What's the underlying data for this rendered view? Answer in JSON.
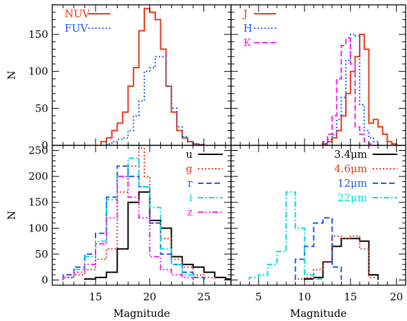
{
  "chart_data": [
    {
      "panel": "top-left",
      "type": "histogram",
      "xlim": [
        11,
        27.5
      ],
      "ylim": [
        0,
        190
      ],
      "xticks": [
        15,
        20,
        25
      ],
      "yticks": [
        0,
        50,
        100,
        150
      ],
      "ylabel": "N",
      "xlabel": "",
      "show_xticklabels": false,
      "legend_placement": "top-left",
      "series": [
        {
          "name": "NUV",
          "color": "#ee3311",
          "dash": "solid",
          "edges": [
            15.5,
            16,
            16.5,
            17,
            17.5,
            18,
            18.5,
            19,
            19.5,
            20,
            20.5,
            21,
            21.5,
            22,
            22.5,
            23,
            23.5,
            24,
            24.5,
            25
          ],
          "values": [
            5,
            10,
            20,
            30,
            45,
            80,
            105,
            155,
            185,
            180,
            170,
            130,
            80,
            45,
            20,
            10,
            5,
            2,
            1
          ]
        },
        {
          "name": "FUV",
          "color": "#2255ee",
          "dash": "dot",
          "edges": [
            16,
            16.5,
            17,
            17.5,
            18,
            18.5,
            19,
            19.5,
            20,
            20.5,
            21,
            21.5,
            22,
            22.5,
            23,
            23.5,
            24,
            24.5,
            25
          ],
          "values": [
            2,
            5,
            8,
            10,
            20,
            40,
            60,
            100,
            105,
            120,
            120,
            80,
            50,
            25,
            12,
            5,
            2,
            1
          ]
        }
      ]
    },
    {
      "panel": "top-right",
      "type": "histogram",
      "xlim": [
        2,
        21
      ],
      "ylim": [
        0,
        190
      ],
      "xticks": [
        5,
        10,
        15,
        20
      ],
      "yticks": [
        0,
        50,
        100,
        150
      ],
      "ylabel": "",
      "xlabel": "",
      "show_xticklabels": false,
      "show_yticklabels": false,
      "legend_placement": "top-left",
      "series": [
        {
          "name": "J",
          "color": "#ee3311",
          "dash": "solid",
          "edges": [
            12,
            12.5,
            13,
            13.5,
            14,
            14.5,
            15,
            15.5,
            16,
            16.5,
            17,
            17.5,
            18,
            18.5,
            19,
            19.5,
            20
          ],
          "values": [
            2,
            5,
            10,
            20,
            40,
            70,
            100,
            120,
            150,
            130,
            30,
            35,
            25,
            15,
            5,
            2
          ]
        },
        {
          "name": "H",
          "color": "#2255ee",
          "dash": "dot",
          "edges": [
            12,
            12.5,
            13,
            13.5,
            14,
            14.5,
            15,
            15.5,
            16,
            16.5,
            17,
            17.5,
            18
          ],
          "values": [
            2,
            8,
            15,
            35,
            65,
            115,
            150,
            148,
            55,
            20,
            10,
            5
          ]
        },
        {
          "name": "K",
          "color": "#ee22ee",
          "dash": "dash",
          "edges": [
            12,
            12.5,
            13,
            13.5,
            14,
            14.5,
            15,
            15.5,
            16,
            16.5,
            17,
            17.5
          ],
          "values": [
            5,
            15,
            40,
            90,
            135,
            145,
            110,
            25,
            15,
            5,
            2
          ]
        }
      ]
    },
    {
      "panel": "bottom-left",
      "type": "histogram",
      "xlim": [
        11,
        27.5
      ],
      "ylim": [
        -10,
        260
      ],
      "xticks": [
        15,
        20,
        25
      ],
      "yticks": [
        0,
        50,
        100,
        150,
        200,
        250
      ],
      "ylabel": "N",
      "xlabel": "Magnitude",
      "legend_placement": "top-right",
      "series": [
        {
          "name": "u",
          "color": "#000000",
          "dash": "solid",
          "edges": [
            14,
            15,
            16,
            17,
            18,
            19,
            20,
            21,
            22,
            23,
            24,
            25,
            26,
            27,
            27.5
          ],
          "values": [
            2,
            5,
            15,
            60,
            150,
            170,
            115,
            100,
            45,
            30,
            25,
            15,
            5,
            2
          ]
        },
        {
          "name": "g",
          "color": "#ee3311",
          "dash": "dot",
          "edges": [
            12,
            13,
            14,
            15,
            16,
            17,
            18,
            19,
            19.5,
            20,
            21,
            22,
            23,
            24,
            25,
            26
          ],
          "values": [
            5,
            10,
            20,
            40,
            60,
            170,
            220,
            255,
            200,
            110,
            80,
            40,
            25,
            10,
            5
          ]
        },
        {
          "name": "r",
          "color": "#2255ee",
          "dash": "dash",
          "edges": [
            12,
            13,
            14,
            15,
            16,
            17,
            18,
            19,
            20,
            21,
            22,
            23,
            24,
            25
          ],
          "values": [
            10,
            25,
            50,
            90,
            160,
            220,
            200,
            180,
            110,
            50,
            30,
            15,
            5
          ]
        },
        {
          "name": "i",
          "color": "#00dddd",
          "dash": "dashdot",
          "edges": [
            12,
            13,
            14,
            15,
            16,
            17,
            18,
            19,
            20,
            21,
            22,
            23,
            24
          ],
          "values": [
            5,
            20,
            45,
            75,
            155,
            200,
            235,
            180,
            140,
            60,
            30,
            10
          ]
        },
        {
          "name": "z",
          "color": "#ee22ee",
          "dash": "dashdotdot",
          "edges": [
            12,
            13,
            14,
            15,
            16,
            17,
            18,
            19,
            20,
            21,
            22,
            23,
            24
          ],
          "values": [
            5,
            15,
            30,
            70,
            120,
            200,
            160,
            120,
            45,
            20,
            10,
            5
          ]
        }
      ]
    },
    {
      "panel": "bottom-right",
      "type": "histogram",
      "xlim": [
        2,
        21
      ],
      "ylim": [
        -10,
        260
      ],
      "xticks": [
        5,
        10,
        15,
        20
      ],
      "yticks": [
        0,
        50,
        100,
        150,
        200,
        250
      ],
      "ylabel": "",
      "xlabel": "Magnitude",
      "show_yticklabels": false,
      "legend_placement": "top-right",
      "series": [
        {
          "name": "3.4μm",
          "color": "#000000",
          "dash": "solid",
          "edges": [
            10,
            11,
            12,
            13,
            14,
            15,
            16,
            17,
            18
          ],
          "values": [
            2,
            5,
            35,
            65,
            80,
            80,
            75,
            10
          ]
        },
        {
          "name": "4.6μm",
          "color": "#ee3311",
          "dash": "dot",
          "edges": [
            9,
            10,
            11,
            12,
            13,
            14,
            15,
            16,
            17,
            18
          ],
          "values": [
            2,
            5,
            20,
            35,
            85,
            80,
            85,
            60,
            5
          ]
        },
        {
          "name": "12μm",
          "color": "#2255ee",
          "dash": "dash",
          "edges": [
            9,
            10,
            11,
            12,
            13,
            14
          ],
          "values": [
            40,
            65,
            110,
            120,
            25
          ]
        },
        {
          "name": "22μm",
          "color": "#00dddd",
          "dash": "dashdot",
          "edges": [
            4,
            5,
            6,
            7,
            8,
            9,
            10,
            11,
            12
          ],
          "values": [
            5,
            10,
            30,
            55,
            170,
            100,
            10,
            2
          ]
        }
      ]
    }
  ]
}
